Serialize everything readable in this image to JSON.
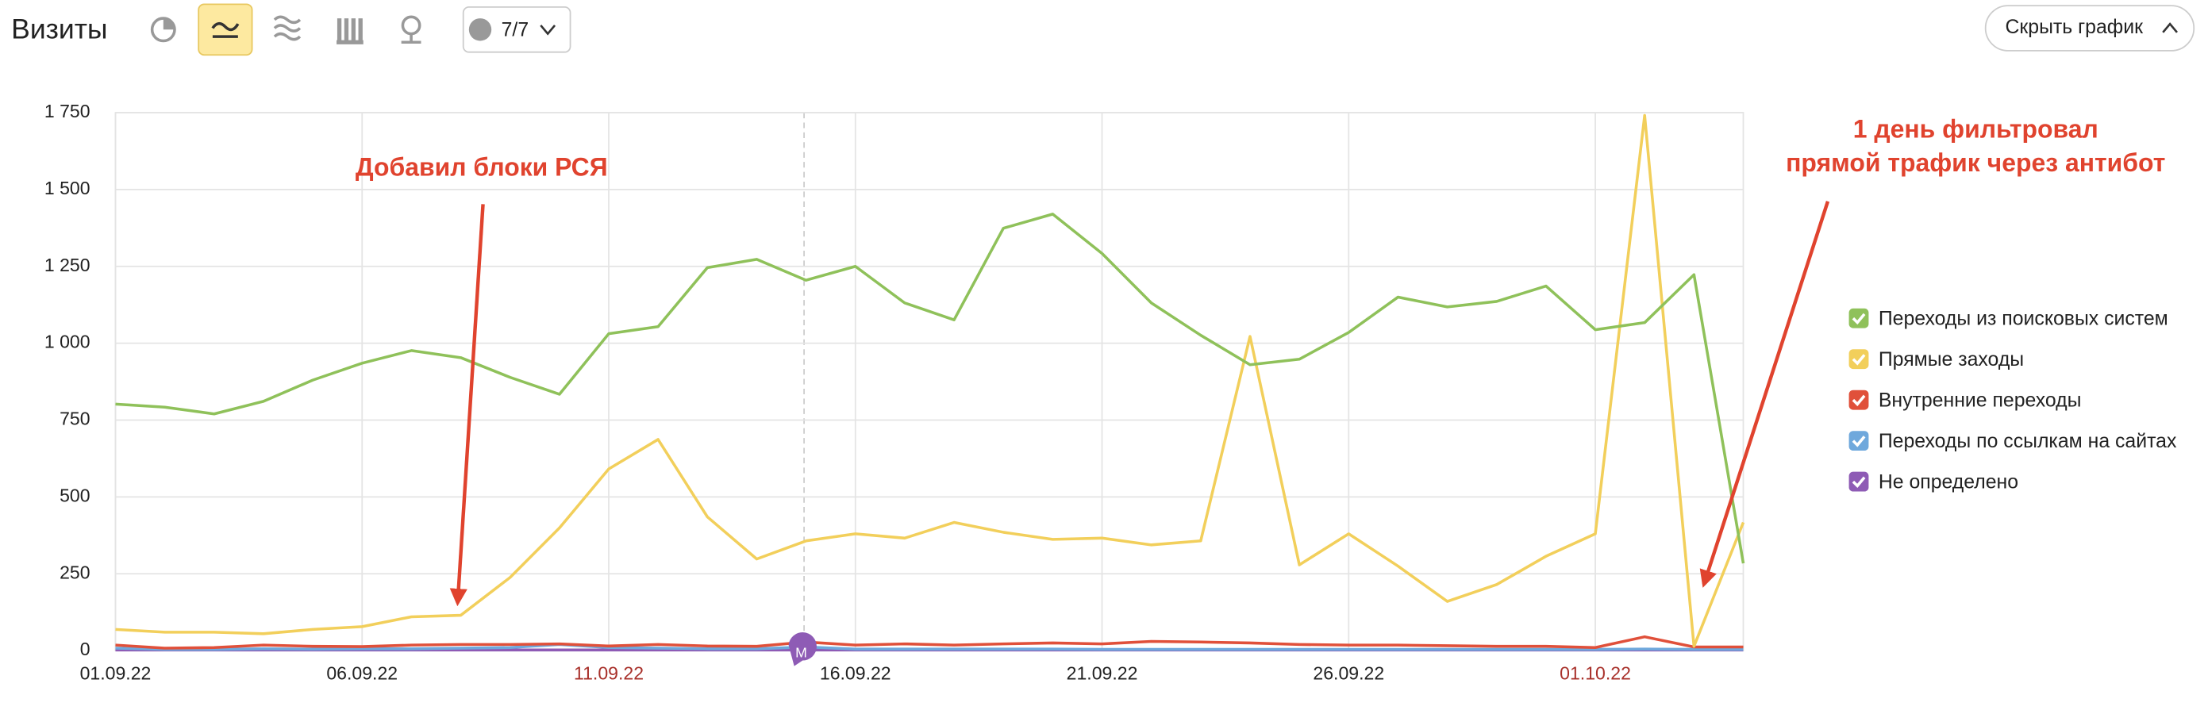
{
  "toolbar": {
    "title": "Визиты",
    "comments_button": "7/7",
    "hide_chart_button": "Скрыть график",
    "comment_marker": "М"
  },
  "chart_data": {
    "type": "line",
    "categories": [
      "01.09.22",
      null,
      null,
      null,
      null,
      "06.09.22",
      null,
      null,
      null,
      null,
      "11.09.22",
      null,
      null,
      null,
      null,
      "16.09.22",
      null,
      null,
      null,
      null,
      "21.09.22",
      null,
      null,
      null,
      null,
      "26.09.22",
      null,
      null,
      null,
      null,
      "01.10.22",
      null,
      null,
      null
    ],
    "xtick_colors": [
      "#222",
      "#222",
      "#222",
      "#222",
      "#222",
      "#222",
      "#222",
      "#222",
      "#222",
      "#222",
      "#a8302a",
      "#222",
      "#222",
      "#222",
      "#222",
      "#222",
      "#222",
      "#222",
      "#222",
      "#222",
      "#222",
      "#222",
      "#222",
      "#222",
      "#222",
      "#222",
      "#222",
      "#222",
      "#222",
      "#222",
      "#a8302a",
      "#222",
      "#222",
      "#222"
    ],
    "ylim": [
      0,
      1750
    ],
    "yticks": [
      0,
      250,
      500,
      750,
      {
        "value": 1000,
        "label": "1 000"
      },
      {
        "value": 1250,
        "label": "1 250"
      },
      {
        "value": 1500,
        "label": "1 500"
      },
      {
        "value": 1750,
        "label": "1 750"
      }
    ],
    "grid": true,
    "legend": "right",
    "series": [
      {
        "name": "Переходы из поисковых систем",
        "color": "#8fc15a",
        "values": [
          802,
          792,
          770,
          811,
          880,
          935,
          976,
          953,
          889,
          834,
          1031,
          1054,
          1246,
          1273,
          1205,
          1250,
          1131,
          1076,
          1374,
          1420,
          1292,
          1131,
          1026,
          930,
          948,
          1035,
          1150,
          1118,
          1136,
          1186,
          1044,
          1067,
          1223,
          284
        ]
      },
      {
        "name": "Прямые заходы",
        "color": "#f2cf5b",
        "values": [
          69,
          60,
          60,
          55,
          69,
          78,
          110,
          115,
          238,
          399,
          591,
          687,
          435,
          298,
          357,
          380,
          366,
          417,
          385,
          362,
          366,
          344,
          357,
          1022,
          279,
          380,
          275,
          160,
          215,
          307,
          380,
          1741,
          14,
          417
        ]
      },
      {
        "name": "Внутренние переходы",
        "color": "#e0503a",
        "values": [
          18,
          8,
          10,
          18,
          14,
          13,
          18,
          20,
          20,
          22,
          15,
          20,
          15,
          14,
          28,
          18,
          22,
          18,
          22,
          25,
          22,
          30,
          28,
          25,
          20,
          18,
          18,
          16,
          14,
          14,
          10,
          45,
          12,
          12
        ]
      },
      {
        "name": "Переходы по ссылкам на сайтах",
        "color": "#6fa8dc",
        "values": [
          8,
          4,
          4,
          6,
          5,
          6,
          6,
          8,
          10,
          20,
          10,
          8,
          6,
          6,
          12,
          5,
          5,
          5,
          5,
          5,
          4,
          4,
          4,
          4,
          4,
          4,
          4,
          4,
          4,
          4,
          4,
          5,
          4,
          4
        ]
      },
      {
        "name": "Не определено",
        "color": "#8e5bb5",
        "values": [
          2,
          2,
          2,
          2,
          2,
          2,
          2,
          2,
          2,
          2,
          2,
          2,
          2,
          2,
          2,
          2,
          2,
          2,
          2,
          2,
          2,
          2,
          2,
          2,
          2,
          2,
          2,
          2,
          2,
          2,
          2,
          2,
          2,
          2
        ]
      }
    ],
    "annotations": [
      {
        "text": [
          "Добавил блоки РСЯ"
        ]
      },
      {
        "text": [
          "1 день фильтровал",
          "прямой трафик через антибот"
        ]
      }
    ]
  }
}
